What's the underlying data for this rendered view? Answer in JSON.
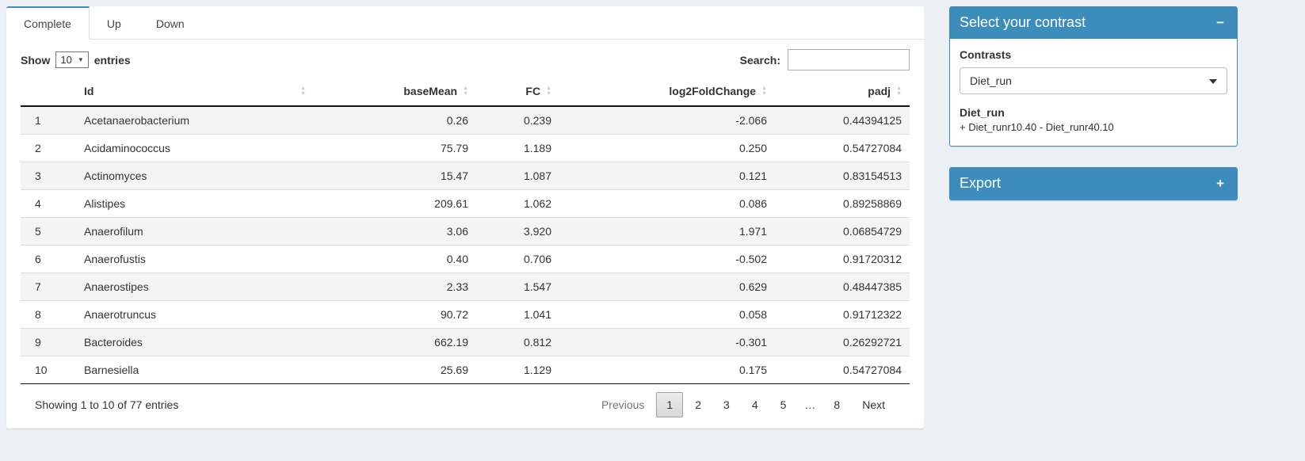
{
  "colors": {
    "primary": "#3c8dbc",
    "background": "#ecf0f5"
  },
  "icons": {
    "sort_asc": "▲",
    "sort_desc": "▼",
    "caret_down": "▼"
  },
  "tabs": [
    {
      "label": "Complete",
      "active": true
    },
    {
      "label": "Up",
      "active": false
    },
    {
      "label": "Down",
      "active": false
    }
  ],
  "table_controls": {
    "show_label": "Show",
    "page_length": "10",
    "entries_label": "entries",
    "search_label": "Search:",
    "search_value": ""
  },
  "table": {
    "headers": [
      {
        "label": "Id",
        "align": "left"
      },
      {
        "label": "baseMean",
        "align": "right"
      },
      {
        "label": "FC",
        "align": "right"
      },
      {
        "label": "log2FoldChange",
        "align": "right"
      },
      {
        "label": "padj",
        "align": "right"
      }
    ],
    "rows": [
      {
        "num": "1",
        "id": "Acetanaerobacterium",
        "baseMean": "0.26",
        "fc": "0.239",
        "log2FoldChange": "-2.066",
        "padj": "0.44394125"
      },
      {
        "num": "2",
        "id": "Acidaminococcus",
        "baseMean": "75.79",
        "fc": "1.189",
        "log2FoldChange": "0.250",
        "padj": "0.54727084"
      },
      {
        "num": "3",
        "id": "Actinomyces",
        "baseMean": "15.47",
        "fc": "1.087",
        "log2FoldChange": "0.121",
        "padj": "0.83154513"
      },
      {
        "num": "4",
        "id": "Alistipes",
        "baseMean": "209.61",
        "fc": "1.062",
        "log2FoldChange": "0.086",
        "padj": "0.89258869"
      },
      {
        "num": "5",
        "id": "Anaerofilum",
        "baseMean": "3.06",
        "fc": "3.920",
        "log2FoldChange": "1.971",
        "padj": "0.06854729"
      },
      {
        "num": "6",
        "id": "Anaerofustis",
        "baseMean": "0.40",
        "fc": "0.706",
        "log2FoldChange": "-0.502",
        "padj": "0.91720312"
      },
      {
        "num": "7",
        "id": "Anaerostipes",
        "baseMean": "2.33",
        "fc": "1.547",
        "log2FoldChange": "0.629",
        "padj": "0.48447385"
      },
      {
        "num": "8",
        "id": "Anaerotruncus",
        "baseMean": "90.72",
        "fc": "1.041",
        "log2FoldChange": "0.058",
        "padj": "0.91712322"
      },
      {
        "num": "9",
        "id": "Bacteroides",
        "baseMean": "662.19",
        "fc": "0.812",
        "log2FoldChange": "-0.301",
        "padj": "0.26292721"
      },
      {
        "num": "10",
        "id": "Barnesiella",
        "baseMean": "25.69",
        "fc": "1.129",
        "log2FoldChange": "0.175",
        "padj": "0.54727084"
      }
    ]
  },
  "footer": {
    "info": "Showing 1 to 10 of 77 entries",
    "pagination": [
      {
        "label": "Previous",
        "type": "disabled"
      },
      {
        "label": "1",
        "type": "active"
      },
      {
        "label": "2",
        "type": "page"
      },
      {
        "label": "3",
        "type": "page"
      },
      {
        "label": "4",
        "type": "page"
      },
      {
        "label": "5",
        "type": "page"
      },
      {
        "label": "…",
        "type": "ellipsis"
      },
      {
        "label": "8",
        "type": "page"
      },
      {
        "label": "Next",
        "type": "page"
      }
    ]
  },
  "sidebar": {
    "contrast_box": {
      "title": "Select your contrast",
      "collapse_icon": "−",
      "contrasts_label": "Contrasts",
      "selected": "Diet_run",
      "detail_title": "Diet_run",
      "detail_formula": "+ Diet_runr10.40 - Diet_runr40.10"
    },
    "export_box": {
      "title": "Export",
      "expand_icon": "+"
    }
  }
}
